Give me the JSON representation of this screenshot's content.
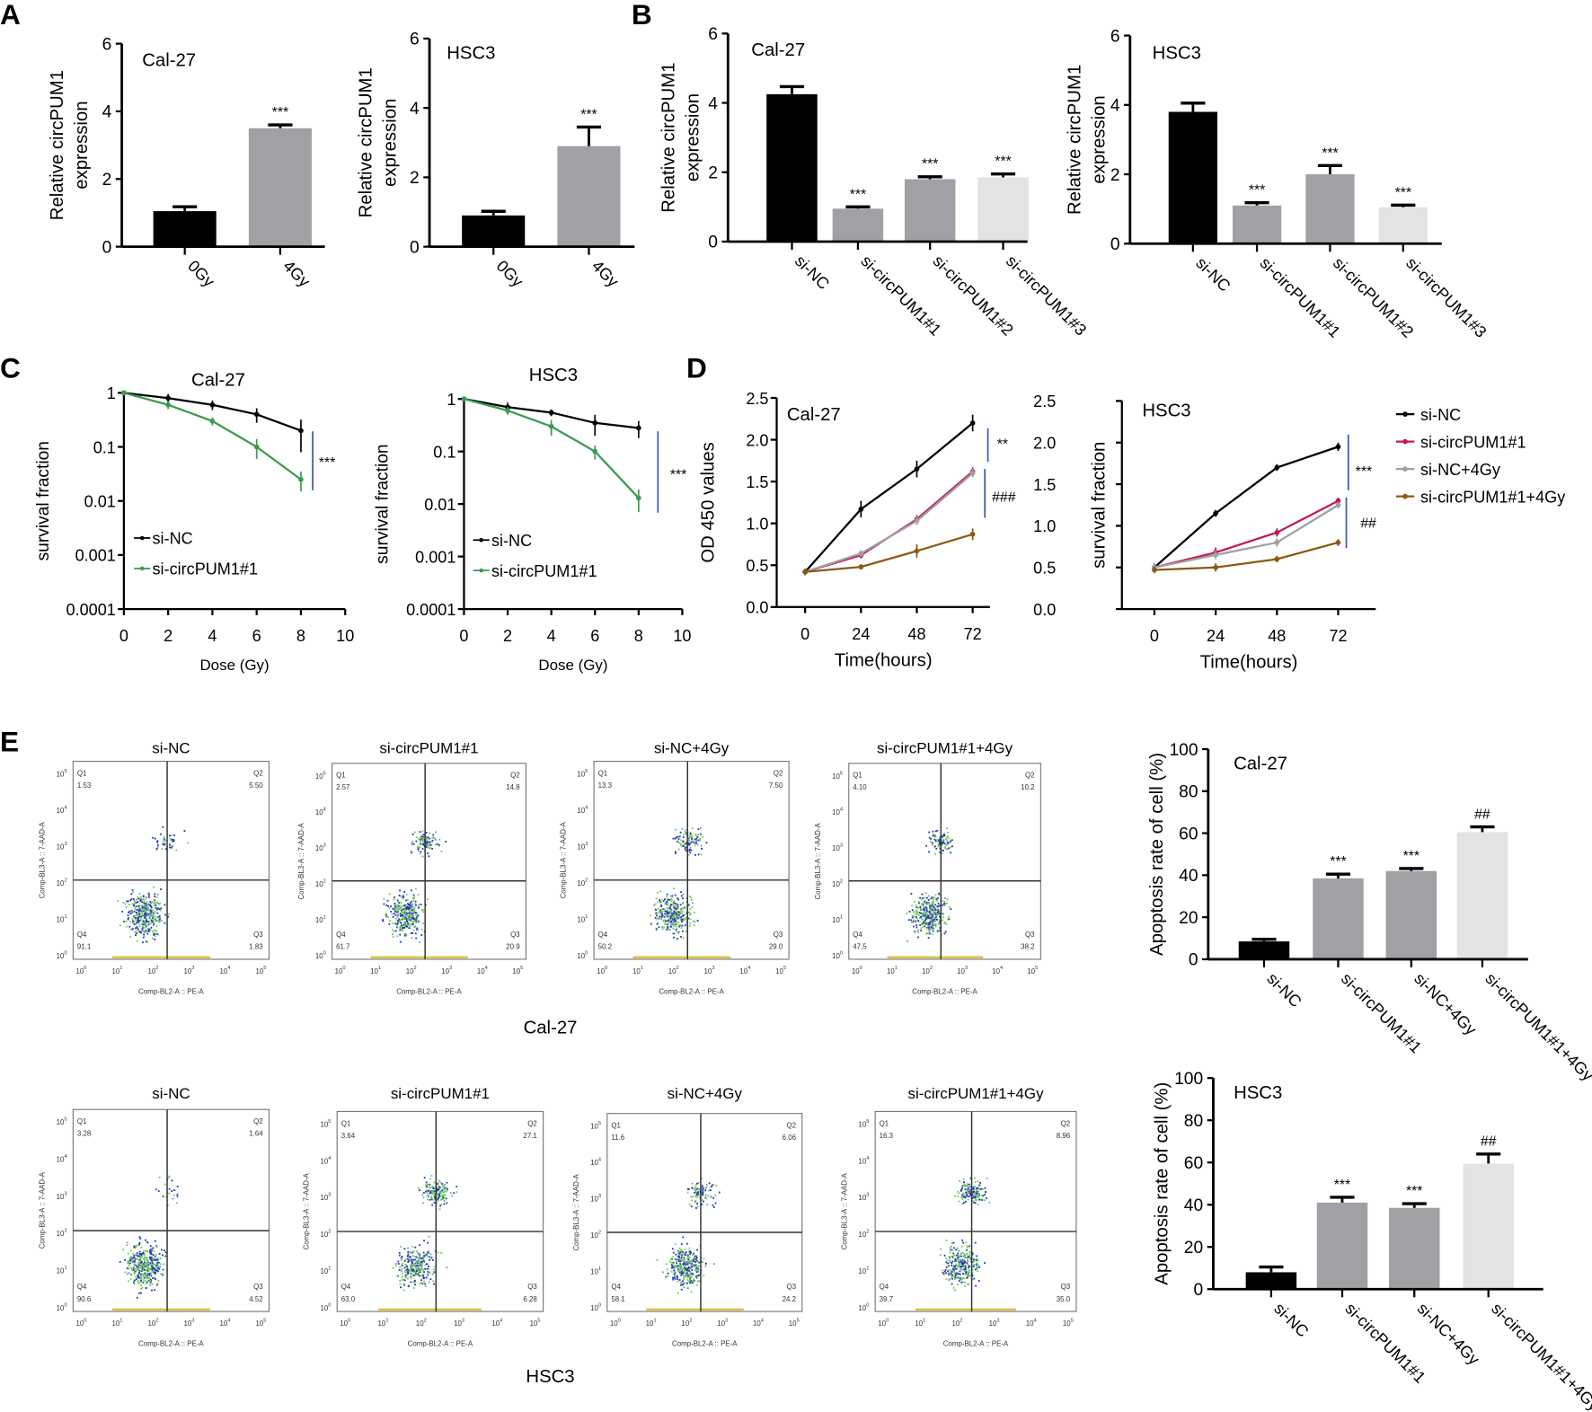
{
  "panel_letters": [
    "A",
    "B",
    "C",
    "D",
    "E"
  ],
  "chart_data": [
    {
      "id": "A-cal27",
      "type": "bar",
      "title": "Cal-27",
      "ylabel": [
        "Relative circPUM1",
        "expression"
      ],
      "ylim": [
        0,
        6
      ],
      "yticks": [
        0,
        2,
        4,
        6
      ],
      "categories": [
        "0Gy",
        "4Gy"
      ],
      "values": [
        1.05,
        3.5
      ],
      "errors": [
        0.13,
        0.1
      ],
      "colors": [
        "#000000",
        "#a1a1a5"
      ],
      "annotations": [
        "",
        "***"
      ]
    },
    {
      "id": "A-hsc3",
      "type": "bar",
      "title": "HSC3",
      "ylabel": [
        "Relative circPUM1",
        "expression"
      ],
      "ylim": [
        0,
        6
      ],
      "yticks": [
        0,
        2,
        4,
        6
      ],
      "categories": [
        "0Gy",
        "4Gy"
      ],
      "values": [
        0.9,
        2.9
      ],
      "errors": [
        0.12,
        0.55
      ],
      "colors": [
        "#000000",
        "#a1a1a5"
      ],
      "annotations": [
        "",
        "***"
      ]
    },
    {
      "id": "B-cal27",
      "type": "bar",
      "title": "Cal-27",
      "ylabel": [
        "Relative circPUM1",
        "expression"
      ],
      "ylim": [
        0,
        6
      ],
      "yticks": [
        0,
        2,
        4,
        6
      ],
      "categories": [
        "si-NC",
        "si-circPUM1#1",
        "si-circPUM1#2",
        "si-circPUM1#3"
      ],
      "values": [
        4.25,
        0.95,
        1.8,
        1.85
      ],
      "errors": [
        0.22,
        0.05,
        0.07,
        0.1
      ],
      "colors": [
        "#000000",
        "#a1a1a5",
        "#a1a1a5",
        "#e3e3e3"
      ],
      "annotations": [
        "",
        "***",
        "***",
        "***"
      ]
    },
    {
      "id": "B-hsc3",
      "type": "bar",
      "title": "HSC3",
      "ylabel": [
        "Relative circPUM1",
        "expression"
      ],
      "ylim": [
        0,
        6
      ],
      "yticks": [
        0,
        2,
        4,
        6
      ],
      "categories": [
        "si-NC",
        "si-circPUM1#1",
        "si-circPUM1#2",
        "si-circPUM1#3"
      ],
      "values": [
        3.8,
        1.1,
        2.0,
        1.05
      ],
      "errors": [
        0.25,
        0.08,
        0.25,
        0.06
      ],
      "colors": [
        "#000000",
        "#a1a1a5",
        "#a1a1a5",
        "#e3e3e3"
      ],
      "annotations": [
        "",
        "***",
        "***",
        "***"
      ]
    },
    {
      "id": "C-cal27",
      "type": "line",
      "yscale": "log",
      "title": "Cal-27",
      "xlabel": "Dose (Gy)",
      "ylabel": "survival fraction",
      "xlim": [
        0,
        10
      ],
      "xticks": [
        0,
        2,
        4,
        6,
        8,
        10
      ],
      "ylim": [
        0.0001,
        1
      ],
      "yticks": [
        1,
        0.1,
        0.01,
        0.001,
        0.0001
      ],
      "ytick_labels": [
        "1",
        "0.1",
        "0.01",
        "0.001",
        "0.0001"
      ],
      "series": [
        {
          "name": "si-NC",
          "color": "#000000",
          "x": [
            0,
            2,
            4,
            6,
            8
          ],
          "y": [
            1,
            0.8,
            0.6,
            0.4,
            0.2
          ],
          "err": [
            0.05,
            0.15,
            0.12,
            0.12,
            0.12
          ]
        },
        {
          "name": "si-circPUM1#1",
          "color": "#3c9a50",
          "x": [
            0,
            2,
            4,
            6,
            8
          ],
          "y": [
            1,
            0.6,
            0.3,
            0.1,
            0.025
          ],
          "err": [
            0.05,
            0.1,
            0.05,
            0.04,
            0.01
          ]
        }
      ],
      "significance": [
        {
          "label": "***"
        }
      ],
      "legend": "bottom-left"
    },
    {
      "id": "C-hsc3",
      "type": "line",
      "yscale": "log",
      "title": "HSC3",
      "xlabel": "Dose (Gy)",
      "ylabel": "survival fraction",
      "xlim": [
        0,
        10
      ],
      "xticks": [
        0,
        2,
        4,
        6,
        8,
        10
      ],
      "ylim": [
        0.0001,
        1
      ],
      "yticks": [
        1,
        0.1,
        0.01,
        0.001,
        0.0001
      ],
      "ytick_labels": [
        "1",
        "0.1",
        "0.01",
        "0.001",
        "0.0001"
      ],
      "series": [
        {
          "name": "si-NC",
          "color": "#000000",
          "x": [
            0,
            2,
            4,
            6,
            8
          ],
          "y": [
            1,
            0.7,
            0.55,
            0.35,
            0.28
          ],
          "err": [
            0.05,
            0.15,
            0.08,
            0.15,
            0.1
          ]
        },
        {
          "name": "si-circPUM1#1",
          "color": "#3c9a50",
          "x": [
            0,
            2,
            4,
            6,
            8
          ],
          "y": [
            1,
            0.6,
            0.3,
            0.1,
            0.013
          ],
          "err": [
            0.05,
            0.1,
            0.1,
            0.03,
            0.006
          ]
        }
      ],
      "significance": [
        {
          "label": "***"
        }
      ],
      "legend": "bottom-left"
    },
    {
      "id": "D-cal27",
      "type": "line",
      "title": "Cal-27",
      "xlabel": "Time(hours)",
      "ylabel": "OD 450 values",
      "xticks": [
        0,
        24,
        48,
        72
      ],
      "ylim": [
        0,
        2.5
      ],
      "yticks": [
        0,
        0.5,
        1,
        1.5,
        2,
        2.5
      ],
      "ytick_labels": [
        "0.0",
        "0.5",
        "1.0",
        "1.5",
        "2.0",
        "2.5"
      ],
      "series": [
        {
          "name": "si-NC",
          "color": "#000000",
          "x": [
            0,
            24,
            48,
            72
          ],
          "y": [
            0.42,
            1.17,
            1.65,
            2.2
          ],
          "err": [
            0.04,
            0.1,
            0.1,
            0.1
          ]
        },
        {
          "name": "si-circPUM1#1",
          "color": "#c2185b",
          "x": [
            0,
            24,
            48,
            72
          ],
          "y": [
            0.42,
            0.62,
            1.05,
            1.62
          ],
          "err": [
            0.04,
            0.04,
            0.05,
            0.05
          ]
        },
        {
          "name": "si-NC+4Gy",
          "color": "#a0a0a0",
          "x": [
            0,
            24,
            48,
            72
          ],
          "y": [
            0.42,
            0.64,
            1.03,
            1.6
          ],
          "err": [
            0.04,
            0.04,
            0.05,
            0.05
          ]
        },
        {
          "name": "si-circPUM1#1+4Gy",
          "color": "#8b5a14",
          "x": [
            0,
            24,
            48,
            72
          ],
          "y": [
            0.42,
            0.48,
            0.67,
            0.87
          ],
          "err": [
            0.04,
            0.03,
            0.08,
            0.07
          ]
        }
      ],
      "significance": [
        {
          "label": "**"
        },
        {
          "label": "###"
        }
      ]
    },
    {
      "id": "D-hsc3",
      "type": "line",
      "title": "HSC3",
      "xlabel": "Time(hours)",
      "ylabel": "survival fraction",
      "xticks": [
        0,
        24,
        48,
        72
      ],
      "ylim": [
        0,
        2.5
      ],
      "yticks": [
        0,
        0.5,
        1,
        1.5,
        2,
        2.5
      ],
      "ytick_labels": [
        "0.0",
        "0.5",
        "1.0",
        "1.5",
        "2.0",
        "2.5"
      ],
      "series": [
        {
          "name": "si-NC",
          "color": "#000000",
          "x": [
            0,
            24,
            48,
            72
          ],
          "y": [
            0.5,
            1.15,
            1.7,
            1.95
          ],
          "err": [
            0.05,
            0.04,
            0.04,
            0.05
          ]
        },
        {
          "name": "si-circPUM1#1",
          "color": "#c2185b",
          "x": [
            0,
            24,
            48,
            72
          ],
          "y": [
            0.5,
            0.68,
            0.92,
            1.3
          ],
          "err": [
            0.05,
            0.06,
            0.05,
            0.04
          ]
        },
        {
          "name": "si-NC+4Gy",
          "color": "#a0a0a0",
          "x": [
            0,
            24,
            48,
            72
          ],
          "y": [
            0.5,
            0.65,
            0.8,
            1.25
          ],
          "err": [
            0.05,
            0.05,
            0.05,
            0.04
          ]
        },
        {
          "name": "si-circPUM1#1+4Gy",
          "color": "#8b5a14",
          "x": [
            0,
            24,
            48,
            72
          ],
          "y": [
            0.47,
            0.5,
            0.6,
            0.8
          ],
          "err": [
            0.04,
            0.05,
            0.04,
            0.04
          ]
        }
      ],
      "significance": [
        {
          "label": "***"
        },
        {
          "label": "##"
        }
      ],
      "legend": "right"
    },
    {
      "id": "E-cal27",
      "type": "bar",
      "title": "Cal-27",
      "ylabel": [
        "Apoptosis rate of cell (%)"
      ],
      "ylim": [
        0,
        100
      ],
      "yticks": [
        0,
        20,
        40,
        60,
        80,
        100
      ],
      "categories": [
        "si-NC",
        "si-circPUM1#1",
        "si-NC+4Gy",
        "si-circPUM1#1+4Gy"
      ],
      "values": [
        8.5,
        38.5,
        42,
        60.5
      ],
      "errors": [
        1,
        2,
        1.2,
        2.5
      ],
      "colors": [
        "#000000",
        "#a1a1a5",
        "#a1a1a5",
        "#e3e3e3"
      ],
      "annotations": [
        "",
        "***",
        "***",
        "##"
      ]
    },
    {
      "id": "E-hsc3",
      "type": "bar",
      "title": "HSC3",
      "ylabel": [
        "Apoptosis rate of cell (%)"
      ],
      "ylim": [
        0,
        100
      ],
      "yticks": [
        0,
        20,
        40,
        60,
        80,
        100
      ],
      "categories": [
        "si-NC",
        "si-circPUM1#1",
        "si-NC+4Gy",
        "si-circPUM1#1+4Gy"
      ],
      "values": [
        8,
        41,
        38.5,
        59.5
      ],
      "errors": [
        2.5,
        2.5,
        2,
        4.5
      ],
      "colors": [
        "#000000",
        "#a1a1a5",
        "#a1a1a5",
        "#e3e3e3"
      ],
      "annotations": [
        "",
        "***",
        "***",
        "##"
      ]
    }
  ],
  "flow": {
    "xlabel": "Comp-BL2-A :: PE-A",
    "ylabel": "Comp-BL3-A :: 7-AAD-A",
    "quadrants": [
      "Q1",
      "Q2",
      "Q3",
      "Q4"
    ],
    "tick_base": "10",
    "tick_exponents": [
      "0",
      "1",
      "2",
      "3",
      "4",
      "5"
    ],
    "groups": [
      {
        "caption": "Cal-27",
        "plots": [
          {
            "title": "si-NC",
            "Q1": "1.53",
            "Q2": "5.50",
            "Q3": "1.83",
            "Q4": "91.1"
          },
          {
            "title": "si-circPUM1#1",
            "Q1": "2.57",
            "Q2": "14.8",
            "Q3": "20.9",
            "Q4": "61.7"
          },
          {
            "title": "si-NC+4Gy",
            "Q1": "13.3",
            "Q2": "7.50",
            "Q3": "29.0",
            "Q4": "50.2"
          },
          {
            "title": "si-circPUM1#1+4Gy",
            "Q1": "4.10",
            "Q2": "10.2",
            "Q3": "38.2",
            "Q4": "47.5"
          }
        ]
      },
      {
        "caption": "HSC3",
        "plots": [
          {
            "title": "si-NC",
            "Q1": "3.28",
            "Q2": "1.64",
            "Q3": "4.52",
            "Q4": "90.6"
          },
          {
            "title": "si-circPUM1#1",
            "Q1": "3.64",
            "Q2": "27.1",
            "Q3": "6.28",
            "Q4": "63.0"
          },
          {
            "title": "si-NC+4Gy",
            "Q1": "11.6",
            "Q2": "6.06",
            "Q3": "24.2",
            "Q4": "58.1"
          },
          {
            "title": "si-circPUM1#1+4Gy",
            "Q1": "16.3",
            "Q2": "8.96",
            "Q3": "35.0",
            "Q4": "39.7"
          }
        ]
      }
    ]
  }
}
